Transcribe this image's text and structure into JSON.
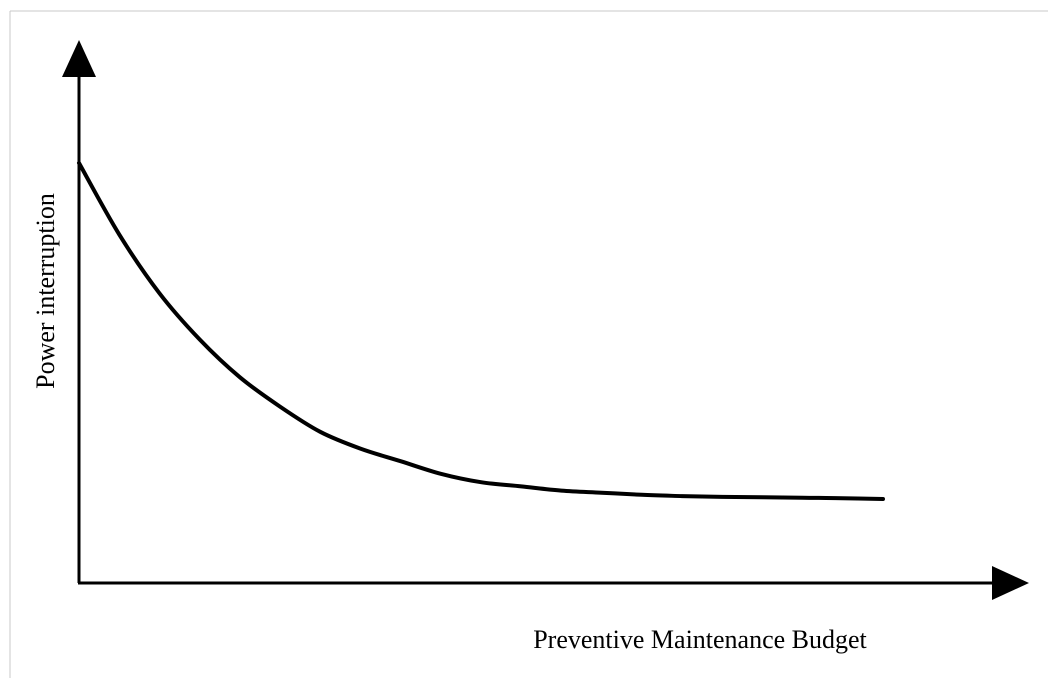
{
  "chart_data": {
    "type": "line",
    "title": "",
    "xlabel": "Preventive Maintenance Budget",
    "ylabel": "Power interruption",
    "grid": false,
    "legend": "none",
    "axis_ticks": false,
    "xlim": [
      0,
      10
    ],
    "ylim": [
      0,
      10
    ],
    "series": [
      {
        "x": [
          0,
          0.5,
          1,
          1.5,
          2,
          2.5,
          3,
          3.5,
          4,
          4.5,
          5,
          5.5,
          6,
          6.5,
          7,
          7.5,
          8,
          8.5,
          9,
          9.5,
          10
        ],
        "y": [
          10,
          8.3,
          6.9,
          5.8,
          4.9,
          4.2,
          3.6,
          3.2,
          2.9,
          2.6,
          2.4,
          2.3,
          2.2,
          2.15,
          2.1,
          2.07,
          2.05,
          2.04,
          2.03,
          2.02,
          2.0
        ]
      }
    ]
  },
  "colors": {
    "axis": "#000000",
    "curve": "#000000",
    "frame": "#c8c8c8",
    "background": "#ffffff"
  }
}
